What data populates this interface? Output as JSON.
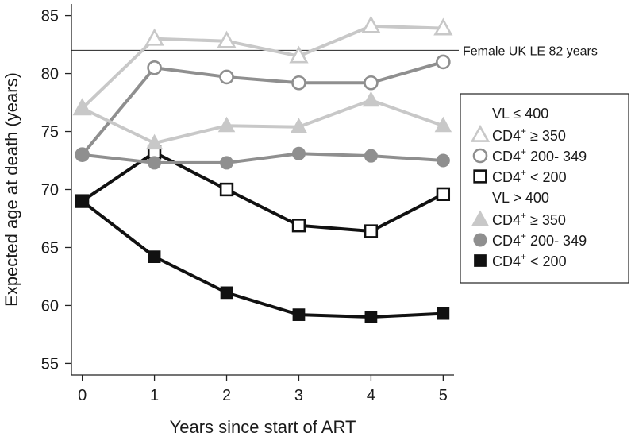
{
  "chart_data": {
    "type": "line",
    "xlabel": "Years since start of ART",
    "ylabel": "Expected age at death (years)",
    "x": [
      0,
      1,
      2,
      3,
      4,
      5
    ],
    "x_ticks": [
      "0",
      "1",
      "2",
      "3",
      "4",
      "5"
    ],
    "xlim": [
      -0.15,
      5.15
    ],
    "ylim": [
      54,
      86
    ],
    "y_ticks": [
      55,
      60,
      65,
      70,
      75,
      80,
      85
    ],
    "grid": false,
    "reference_line": {
      "y": 82,
      "label": "Female UK LE 82 years"
    },
    "legend": {
      "placement": "right",
      "groups": [
        {
          "heading_parts": [
            "VL ",
            "≤",
            " 400"
          ],
          "series_indices": [
            0,
            1,
            2
          ]
        },
        {
          "heading_parts": [
            "VL ",
            ">",
            " 400"
          ],
          "series_indices": [
            3,
            4,
            5
          ]
        }
      ]
    },
    "series": [
      {
        "name": "VL ≤ 400, CD4+ ≥ 350",
        "label_base": "CD4",
        "label_sup": "+",
        "label_rest": " ≥ 350",
        "marker": "triangle-open",
        "color": "#c8c8c8",
        "values": [
          77.0,
          83.0,
          82.8,
          81.5,
          84.1,
          83.9
        ]
      },
      {
        "name": "VL ≤ 400, CD4+ 200-349",
        "label_base": "CD4",
        "label_sup": "+",
        "label_rest": " 200- 349",
        "marker": "circle-open",
        "color": "#8f8f8f",
        "values": [
          73.0,
          80.5,
          79.7,
          79.2,
          79.2,
          81.0
        ]
      },
      {
        "name": "VL ≤ 400, CD4+ < 200",
        "label_base": "CD4",
        "label_sup": "+",
        "label_rest": " < 200",
        "marker": "square-open",
        "color": "#111111",
        "values": [
          69.0,
          73.2,
          70.0,
          66.9,
          66.4,
          69.6
        ]
      },
      {
        "name": "VL > 400, CD4+ ≥ 350",
        "label_base": "CD4",
        "label_sup": "+",
        "label_rest": " ≥ 350",
        "marker": "triangle-filled",
        "color": "#c8c8c8",
        "values": [
          77.0,
          74.0,
          75.5,
          75.4,
          77.7,
          75.5
        ]
      },
      {
        "name": "VL > 400, CD4+ 200-349",
        "label_base": "CD4",
        "label_sup": "+",
        "label_rest": " 200- 349",
        "marker": "circle-filled",
        "color": "#8f8f8f",
        "values": [
          73.0,
          72.3,
          72.3,
          73.1,
          72.9,
          72.5
        ]
      },
      {
        "name": "VL > 400, CD4+ < 200",
        "label_base": "CD4",
        "label_sup": "+",
        "label_rest": " < 200",
        "marker": "square-filled",
        "color": "#111111",
        "values": [
          69.0,
          64.2,
          61.1,
          59.2,
          59.0,
          59.3
        ]
      }
    ]
  }
}
